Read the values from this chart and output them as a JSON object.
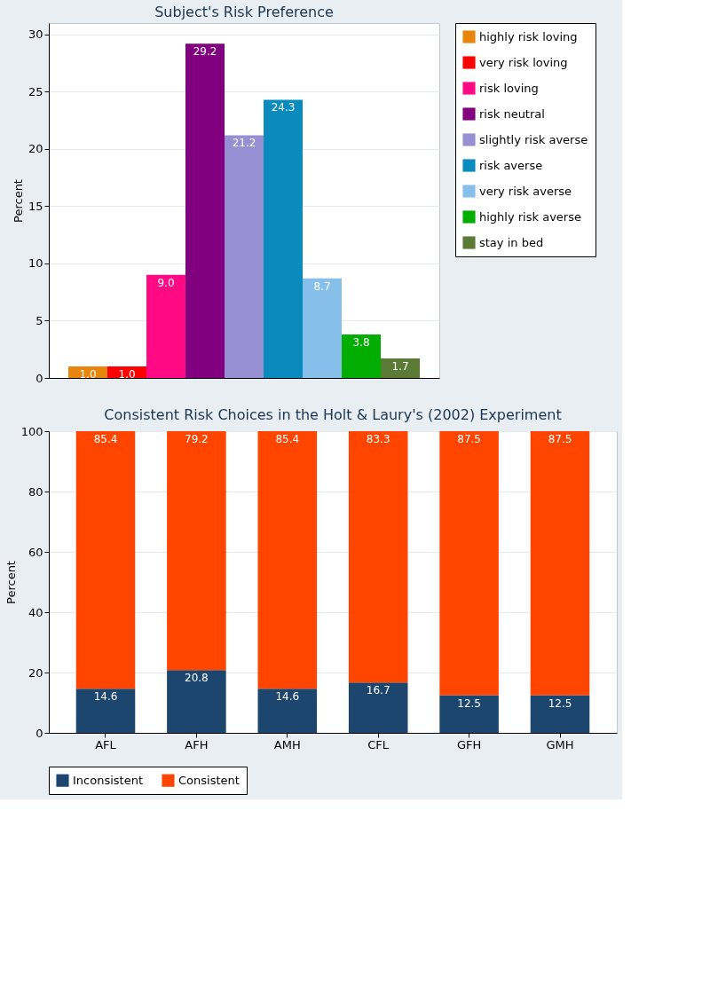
{
  "chart_data": [
    {
      "type": "bar",
      "title": "Subject's Risk Preference",
      "ylabel": "Percent",
      "categories": [
        null,
        null,
        null,
        null,
        null,
        null,
        null,
        null,
        null
      ],
      "series": [
        {
          "name": "highly risk loving",
          "color": "#e8850c",
          "values": [
            1.0,
            null,
            null,
            null,
            null,
            null,
            null,
            null,
            null
          ],
          "value_labels": [
            "1.0",
            null,
            null,
            null,
            null,
            null,
            null,
            null,
            null
          ]
        },
        {
          "name": "very risk loving",
          "color": "#ff0000",
          "values": [
            null,
            1.0,
            null,
            null,
            null,
            null,
            null,
            null,
            null
          ],
          "value_labels": [
            null,
            "1.0",
            null,
            null,
            null,
            null,
            null,
            null,
            null
          ]
        },
        {
          "name": "risk loving",
          "color": "#ff0a84",
          "values": [
            null,
            null,
            9.0,
            null,
            null,
            null,
            null,
            null,
            null
          ],
          "value_labels": [
            null,
            null,
            "9.0",
            null,
            null,
            null,
            null,
            null,
            null
          ]
        },
        {
          "name": "risk neutral",
          "color": "#80007f",
          "values": [
            null,
            null,
            null,
            29.2,
            null,
            null,
            null,
            null,
            null
          ],
          "value_labels": [
            null,
            null,
            null,
            "29.2",
            null,
            null,
            null,
            null,
            null
          ]
        },
        {
          "name": "slightly risk averse",
          "color": "#968fd2",
          "values": [
            null,
            null,
            null,
            null,
            21.2,
            null,
            null,
            null,
            null
          ],
          "value_labels": [
            null,
            null,
            null,
            null,
            "21.2",
            null,
            null,
            null,
            null
          ]
        },
        {
          "name": "risk averse",
          "color": "#0a8bbe",
          "values": [
            null,
            null,
            null,
            null,
            null,
            24.3,
            null,
            null,
            null
          ],
          "value_labels": [
            null,
            null,
            null,
            null,
            null,
            "24.3",
            null,
            null,
            null
          ]
        },
        {
          "name": "very risk averse",
          "color": "#86c0ea",
          "values": [
            null,
            null,
            null,
            null,
            null,
            null,
            8.7,
            null,
            null
          ],
          "value_labels": [
            null,
            null,
            null,
            null,
            null,
            null,
            "8.7",
            null,
            null
          ]
        },
        {
          "name": "highly risk averse",
          "color": "#00ad00",
          "values": [
            null,
            null,
            null,
            null,
            null,
            null,
            null,
            3.8,
            null
          ],
          "value_labels": [
            null,
            null,
            null,
            null,
            null,
            null,
            null,
            "3.8",
            null
          ]
        },
        {
          "name": "stay in bed",
          "color": "#5b7a35",
          "values": [
            null,
            null,
            null,
            null,
            null,
            null,
            null,
            null,
            1.7
          ],
          "value_labels": [
            null,
            null,
            null,
            null,
            null,
            null,
            null,
            null,
            "1.7"
          ]
        }
      ],
      "ylim": [
        0,
        31
      ],
      "yticks": [
        0,
        5,
        10,
        15,
        20,
        25,
        30
      ],
      "grid": "y",
      "legend": "right",
      "tick_labels": "y"
    },
    {
      "type": "bar",
      "title": "Consistent Risk Choices in the Holt & Laury's (2002) Experiment",
      "ylabel": "Percent",
      "categories": [
        "AFL",
        "AFH",
        "AMH",
        "CFL",
        "GFH",
        "GMH"
      ],
      "series": [
        {
          "name": "Inconsistent",
          "color": "#1c466e",
          "values": [
            14.6,
            20.8,
            14.6,
            16.7,
            12.5,
            12.5
          ]
        },
        {
          "name": "Consistent",
          "color": "#ff4500",
          "values": [
            85.4,
            79.2,
            85.4,
            83.3,
            87.5,
            87.5
          ]
        }
      ],
      "stacked": true,
      "ylim": [
        0,
        100
      ],
      "yticks": [
        0,
        20,
        40,
        60,
        80,
        100
      ],
      "grid": "y",
      "legend": "bottom",
      "data_labels": true
    }
  ]
}
